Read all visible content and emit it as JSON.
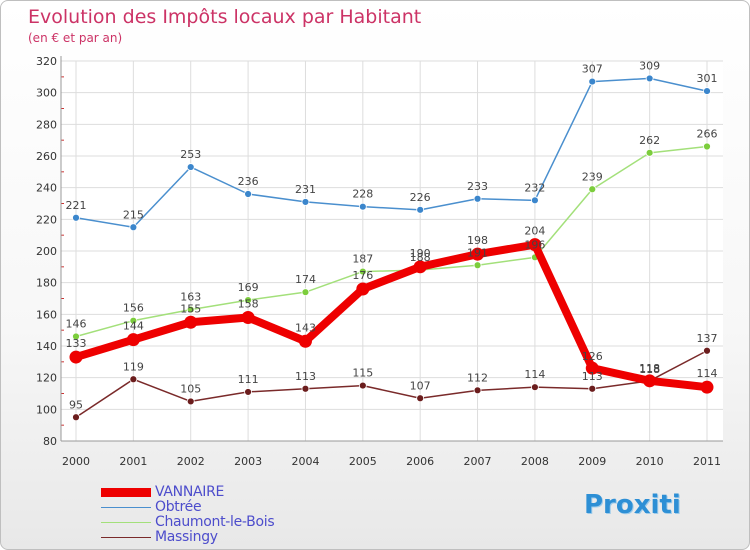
{
  "chart_data": {
    "type": "line",
    "title": "Evolution des Impôts locaux par Habitant",
    "subtitle": "(en € et par an)",
    "xlabel": "",
    "ylabel": "",
    "x": [
      "2000",
      "2001",
      "2002",
      "2003",
      "2004",
      "2005",
      "2006",
      "2007",
      "2008",
      "2009",
      "2010",
      "2011"
    ],
    "ylim": [
      80,
      320
    ],
    "yticks": [
      80,
      100,
      120,
      140,
      160,
      180,
      200,
      220,
      240,
      260,
      280,
      300,
      320
    ],
    "grid": true,
    "legend_position": "bottom-left",
    "series": [
      {
        "name": "Obtrée",
        "color": "#4a8fce",
        "marker": "#3b86cc",
        "values": [
          221,
          215,
          253,
          236,
          231,
          228,
          226,
          233,
          232,
          307,
          309,
          301
        ]
      },
      {
        "name": "Chaumont-le-Bois",
        "color": "#a3e07a",
        "marker": "#7ccd3c",
        "values": [
          146,
          156,
          163,
          169,
          174,
          187,
          188,
          191,
          196,
          239,
          262,
          266
        ]
      },
      {
        "name": "Massingy",
        "color": "#7a2a2a",
        "marker": "#6b1d1d",
        "values": [
          95,
          119,
          105,
          111,
          113,
          115,
          107,
          112,
          114,
          113,
          118,
          137
        ]
      },
      {
        "name": "VANNAIRE",
        "color": "#ee0000",
        "marker": "#ee0000",
        "values": [
          133,
          144,
          155,
          158,
          143,
          176,
          190,
          198,
          204,
          126,
          118,
          114
        ]
      }
    ],
    "data_labels": {
      "Obtrée": [
        "221",
        "215",
        "253",
        "236",
        "231",
        "228",
        "226",
        "233",
        "232",
        "307",
        "309",
        "301"
      ],
      "Chaumont-le-Bois": [
        "146",
        "156",
        "163",
        "169",
        "174",
        "187",
        "188",
        "191",
        "196",
        "239",
        "262",
        "266"
      ],
      "Massingy": [
        "95",
        "119",
        "105",
        "111",
        "113",
        "115",
        "107",
        "112",
        "114",
        "113",
        "118",
        "137"
      ],
      "VANNAIRE": [
        "133",
        "144",
        "155",
        "158",
        "143",
        "176",
        "190",
        "198",
        "204",
        "126",
        "118",
        "114"
      ]
    }
  },
  "legend": {
    "items": [
      {
        "label": "VANNAIRE",
        "color": "#ee0000"
      },
      {
        "label": "Obtrée",
        "color": "#4a8fce"
      },
      {
        "label": "Chaumont-le-Bois",
        "color": "#a3e07a"
      },
      {
        "label": "Massingy",
        "color": "#7a2a2a"
      }
    ]
  },
  "brand": {
    "name": "Proxiti"
  }
}
